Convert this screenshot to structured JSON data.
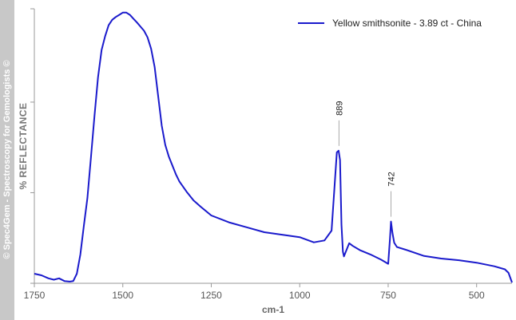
{
  "watermark": "© Spec4Gem - Spectroscopy for Gemologists ©",
  "chart_data": {
    "type": "line",
    "xlabel": "cm-1",
    "ylabel": "% REFLECTANCE",
    "xlim": [
      1750,
      400
    ],
    "x_reversed": true,
    "xticks": [
      1750,
      1500,
      1250,
      1000,
      750,
      500
    ],
    "ylim": [
      0,
      100
    ],
    "yticks": [
      0,
      33,
      66,
      100
    ],
    "y_tick_labels_shown": false,
    "grid": false,
    "legend_position": "top-right",
    "series": [
      {
        "name": "Yellow smithsonite - 3.89 ct - China",
        "color": "#1a1acc",
        "x": [
          1750,
          1730,
          1710,
          1695,
          1680,
          1665,
          1650,
          1640,
          1630,
          1620,
          1610,
          1600,
          1590,
          1580,
          1570,
          1560,
          1550,
          1540,
          1530,
          1520,
          1510,
          1500,
          1490,
          1480,
          1470,
          1460,
          1450,
          1440,
          1430,
          1420,
          1410,
          1400,
          1390,
          1380,
          1370,
          1360,
          1350,
          1340,
          1320,
          1300,
          1280,
          1250,
          1200,
          1150,
          1100,
          1050,
          1000,
          960,
          930,
          910,
          900,
          895,
          890,
          886,
          882,
          878,
          875,
          870,
          860,
          850,
          830,
          800,
          770,
          750,
          745,
          742,
          738,
          733,
          725,
          700,
          650,
          600,
          550,
          500,
          450,
          420,
          410,
          400
        ],
        "values": [
          3.5,
          2.9,
          1.8,
          1.3,
          1.8,
          0.8,
          0.6,
          0.8,
          3.5,
          10.5,
          21,
          31,
          46,
          61,
          75,
          85,
          90,
          94,
          96,
          97,
          97.8,
          98.6,
          98.6,
          97.8,
          96.4,
          95,
          93.5,
          92,
          89.6,
          85.4,
          78.8,
          68.2,
          57.4,
          50.4,
          46.2,
          42.9,
          39.7,
          37.1,
          33.4,
          30.2,
          27.9,
          24.7,
          22.2,
          20.4,
          18.6,
          17.7,
          16.8,
          14.9,
          15.6,
          19.2,
          38.2,
          47.7,
          48.3,
          44.9,
          21.4,
          11.5,
          9.8,
          11.4,
          14.6,
          13.6,
          12.1,
          10.5,
          8.6,
          7.1,
          16.2,
          22.5,
          18.4,
          14.8,
          13.2,
          12.2,
          10,
          9,
          8.4,
          7.5,
          6.2,
          5.1,
          3.8,
          0.3
        ]
      }
    ],
    "annotations": [
      {
        "label": "889",
        "x": 889
      },
      {
        "label": "742",
        "x": 742
      }
    ]
  }
}
